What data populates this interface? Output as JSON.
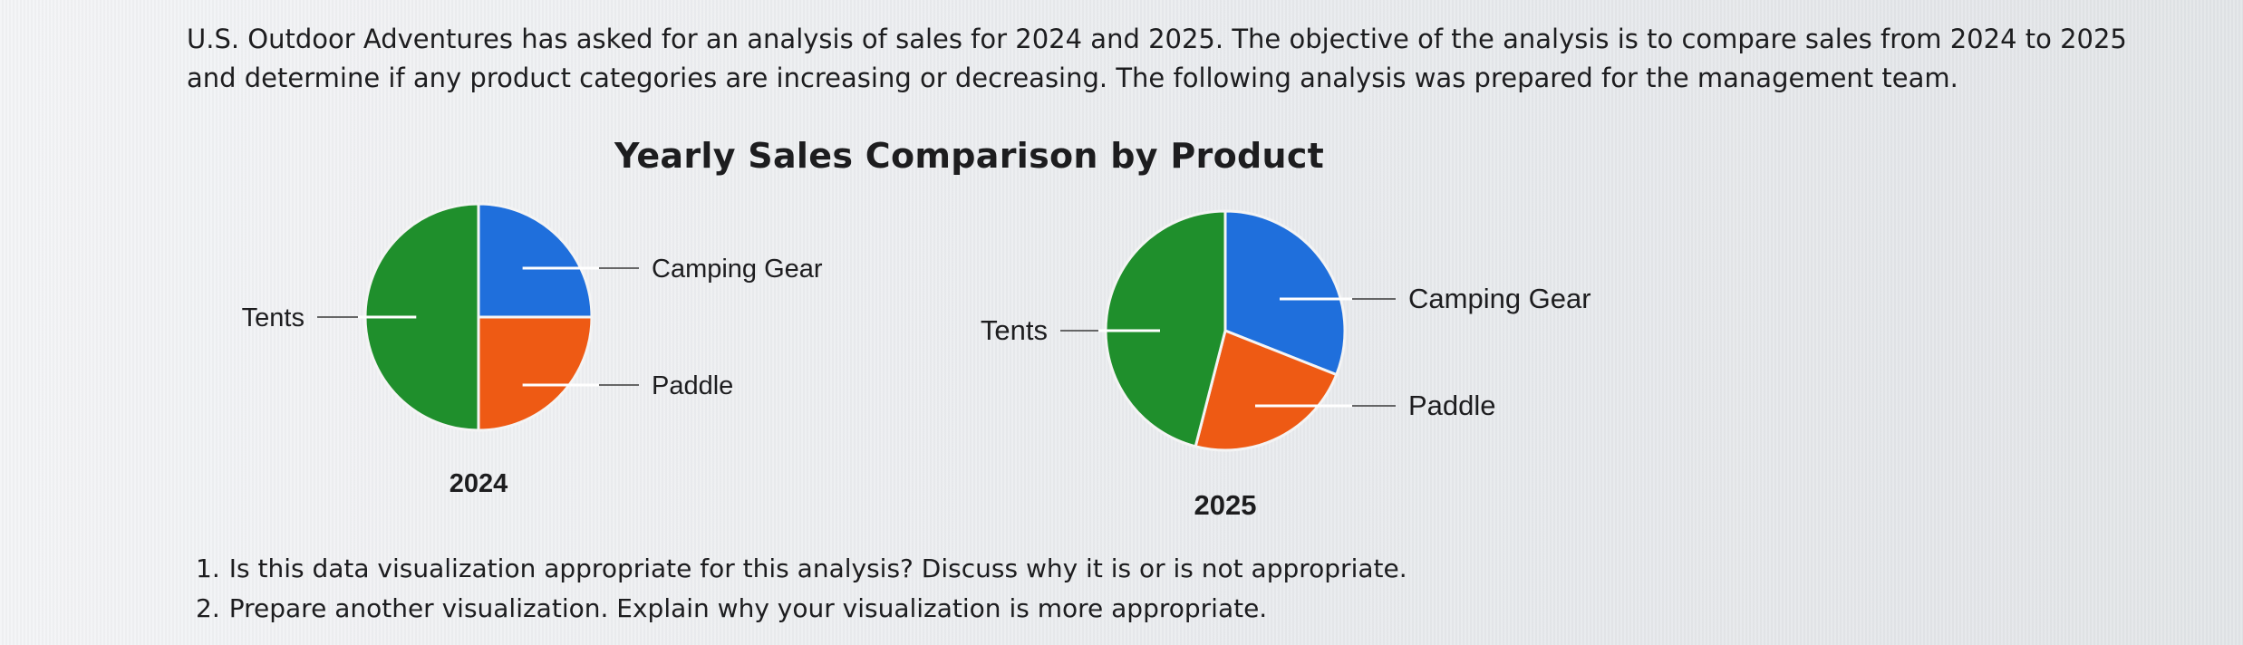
{
  "intro": "U.S. Outdoor Adventures has asked for an analysis of sales for 2024 and 2025. The objective of the analysis is to compare sales from 2024 to 2025 and determine if any product categories are increasing or decreasing. The following analysis was prepared for the management team.",
  "colors": {
    "camping_gear": "#1f6fdc",
    "paddle": "#ee5a14",
    "tents": "#1f8f2c"
  },
  "chart_data": [
    {
      "type": "pie",
      "title": "Yearly Sales Comparison by Product",
      "subtitle": "2024",
      "categories": [
        "Camping Gear",
        "Paddle",
        "Tents"
      ],
      "values": [
        25,
        25,
        50
      ],
      "label_positions": [
        "right",
        "right",
        "left"
      ],
      "grid": false
    },
    {
      "type": "pie",
      "title": "Yearly Sales Comparison by Product",
      "subtitle": "2025",
      "categories": [
        "Camping Gear",
        "Paddle",
        "Tents"
      ],
      "values": [
        31,
        23,
        46
      ],
      "label_positions": [
        "right",
        "right",
        "left"
      ],
      "grid": false
    }
  ],
  "questions": [
    {
      "num": "1.",
      "text": "Is this data visualization appropriate for this analysis? Discuss why it is or is not appropriate."
    },
    {
      "num": "2.",
      "text": "Prepare another visualization. Explain why your visualization is more appropriate."
    }
  ]
}
